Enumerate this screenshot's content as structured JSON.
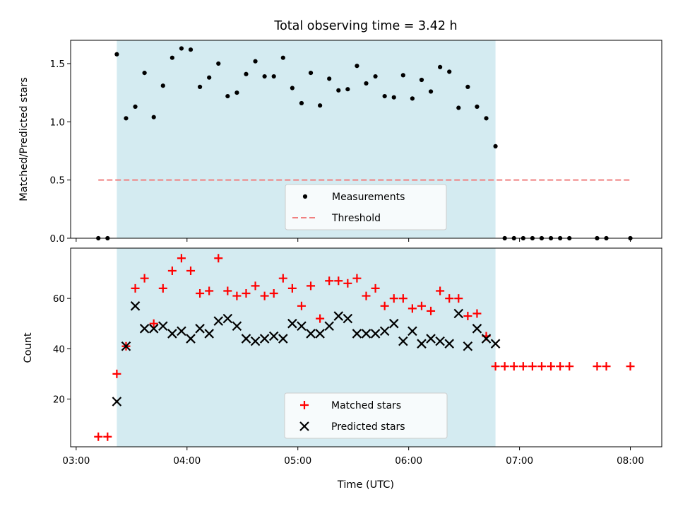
{
  "chart_data": [
    {
      "type": "scatter",
      "title": "Total observing time = 3.42 h",
      "ylabel": "Matched/Predicted stars",
      "xlabel": "",
      "ylim": [
        0,
        1.7
      ],
      "yticks": [
        "0.0",
        "0.5",
        "1.0",
        "1.5"
      ],
      "highlight_band": {
        "start": "03:22",
        "end": "06:47",
        "color": "#d4ebf1"
      },
      "threshold": {
        "name": "Threshold",
        "value": 0.5,
        "x_start": "03:12",
        "x_end": "08:00",
        "color": "#f08080"
      },
      "legend": {
        "placement": "lower-center",
        "entries": [
          "Measurements",
          "Threshold"
        ]
      },
      "series": [
        {
          "name": "Measurements",
          "color": "#000000",
          "points": [
            [
              "03:12",
              0
            ],
            [
              "03:17",
              0
            ],
            [
              "03:22",
              1.58
            ],
            [
              "03:27",
              1.03
            ],
            [
              "03:32",
              1.13
            ],
            [
              "03:37",
              1.42
            ],
            [
              "03:42",
              1.04
            ],
            [
              "03:47",
              1.31
            ],
            [
              "03:52",
              1.55
            ],
            [
              "03:57",
              1.63
            ],
            [
              "04:02",
              1.62
            ],
            [
              "04:07",
              1.3
            ],
            [
              "04:12",
              1.38
            ],
            [
              "04:17",
              1.5
            ],
            [
              "04:22",
              1.22
            ],
            [
              "04:27",
              1.25
            ],
            [
              "04:32",
              1.41
            ],
            [
              "04:37",
              1.52
            ],
            [
              "04:42",
              1.39
            ],
            [
              "04:47",
              1.39
            ],
            [
              "04:52",
              1.55
            ],
            [
              "04:57",
              1.29
            ],
            [
              "05:02",
              1.16
            ],
            [
              "05:07",
              1.42
            ],
            [
              "05:12",
              1.14
            ],
            [
              "05:17",
              1.37
            ],
            [
              "05:22",
              1.27
            ],
            [
              "05:27",
              1.28
            ],
            [
              "05:32",
              1.48
            ],
            [
              "05:37",
              1.33
            ],
            [
              "05:42",
              1.39
            ],
            [
              "05:47",
              1.22
            ],
            [
              "05:52",
              1.21
            ],
            [
              "05:57",
              1.4
            ],
            [
              "06:02",
              1.2
            ],
            [
              "06:07",
              1.36
            ],
            [
              "06:12",
              1.26
            ],
            [
              "06:17",
              1.47
            ],
            [
              "06:22",
              1.43
            ],
            [
              "06:27",
              1.12
            ],
            [
              "06:32",
              1.3
            ],
            [
              "06:37",
              1.13
            ],
            [
              "06:42",
              1.03
            ],
            [
              "06:47",
              0.79
            ],
            [
              "06:52",
              0
            ],
            [
              "06:57",
              0
            ],
            [
              "07:02",
              0
            ],
            [
              "07:07",
              0
            ],
            [
              "07:12",
              0
            ],
            [
              "07:17",
              0
            ],
            [
              "07:22",
              0
            ],
            [
              "07:27",
              0
            ],
            [
              "07:42",
              0
            ],
            [
              "07:47",
              0
            ],
            [
              "08:00",
              0
            ]
          ]
        }
      ]
    },
    {
      "type": "scatter",
      "title": "",
      "xlabel": "Time (UTC)",
      "ylabel": "Count",
      "ylim": [
        1,
        80
      ],
      "yticks": [
        "20",
        "40",
        "60"
      ],
      "xlim": [
        "02:57",
        "08:17"
      ],
      "xticks": [
        "03:00",
        "04:00",
        "05:00",
        "06:00",
        "07:00",
        "08:00"
      ],
      "highlight_band": {
        "start": "03:22",
        "end": "06:47",
        "color": "#d4ebf1"
      },
      "legend": {
        "placement": "lower-center",
        "entries": [
          "Matched stars",
          "Predicted stars"
        ]
      },
      "series": [
        {
          "name": "Matched stars",
          "marker": "+",
          "color": "#ff0000",
          "points": [
            [
              "03:12",
              5
            ],
            [
              "03:17",
              5
            ],
            [
              "03:22",
              30
            ],
            [
              "03:27",
              41
            ],
            [
              "03:32",
              64
            ],
            [
              "03:37",
              68
            ],
            [
              "03:42",
              50
            ],
            [
              "03:47",
              64
            ],
            [
              "03:52",
              71
            ],
            [
              "03:57",
              76
            ],
            [
              "04:02",
              71
            ],
            [
              "04:07",
              62
            ],
            [
              "04:12",
              63
            ],
            [
              "04:17",
              76
            ],
            [
              "04:22",
              63
            ],
            [
              "04:27",
              61
            ],
            [
              "04:32",
              62
            ],
            [
              "04:37",
              65
            ],
            [
              "04:42",
              61
            ],
            [
              "04:47",
              62
            ],
            [
              "04:52",
              68
            ],
            [
              "04:57",
              64
            ],
            [
              "05:02",
              57
            ],
            [
              "05:07",
              65
            ],
            [
              "05:12",
              52
            ],
            [
              "05:17",
              67
            ],
            [
              "05:22",
              67
            ],
            [
              "05:27",
              66
            ],
            [
              "05:32",
              68
            ],
            [
              "05:37",
              61
            ],
            [
              "05:42",
              64
            ],
            [
              "05:47",
              57
            ],
            [
              "05:52",
              60
            ],
            [
              "05:57",
              60
            ],
            [
              "06:02",
              56
            ],
            [
              "06:07",
              57
            ],
            [
              "06:12",
              55
            ],
            [
              "06:17",
              63
            ],
            [
              "06:22",
              60
            ],
            [
              "06:27",
              60
            ],
            [
              "06:32",
              53
            ],
            [
              "06:37",
              54
            ],
            [
              "06:42",
              45
            ],
            [
              "06:47",
              33
            ],
            [
              "06:52",
              33
            ],
            [
              "06:57",
              33
            ],
            [
              "07:02",
              33
            ],
            [
              "07:07",
              33
            ],
            [
              "07:12",
              33
            ],
            [
              "07:17",
              33
            ],
            [
              "07:22",
              33
            ],
            [
              "07:27",
              33
            ],
            [
              "07:42",
              33
            ],
            [
              "07:47",
              33
            ],
            [
              "08:00",
              33
            ]
          ]
        },
        {
          "name": "Predicted stars",
          "marker": "x",
          "color": "#000000",
          "points": [
            [
              "03:22",
              19
            ],
            [
              "03:27",
              41
            ],
            [
              "03:32",
              57
            ],
            [
              "03:37",
              48
            ],
            [
              "03:42",
              48
            ],
            [
              "03:47",
              49
            ],
            [
              "03:52",
              46
            ],
            [
              "03:57",
              47
            ],
            [
              "04:02",
              44
            ],
            [
              "04:07",
              48
            ],
            [
              "04:12",
              46
            ],
            [
              "04:17",
              51
            ],
            [
              "04:22",
              52
            ],
            [
              "04:27",
              49
            ],
            [
              "04:32",
              44
            ],
            [
              "04:37",
              43
            ],
            [
              "04:42",
              44
            ],
            [
              "04:47",
              45
            ],
            [
              "04:52",
              44
            ],
            [
              "04:57",
              50
            ],
            [
              "05:02",
              49
            ],
            [
              "05:07",
              46
            ],
            [
              "05:12",
              46
            ],
            [
              "05:17",
              49
            ],
            [
              "05:22",
              53
            ],
            [
              "05:27",
              52
            ],
            [
              "05:32",
              46
            ],
            [
              "05:37",
              46
            ],
            [
              "05:42",
              46
            ],
            [
              "05:47",
              47
            ],
            [
              "05:52",
              50
            ],
            [
              "05:57",
              43
            ],
            [
              "06:02",
              47
            ],
            [
              "06:07",
              42
            ],
            [
              "06:12",
              44
            ],
            [
              "06:17",
              43
            ],
            [
              "06:22",
              42
            ],
            [
              "06:27",
              54
            ],
            [
              "06:32",
              41
            ],
            [
              "06:37",
              48
            ],
            [
              "06:42",
              44
            ],
            [
              "06:47",
              42
            ]
          ]
        }
      ]
    }
  ]
}
